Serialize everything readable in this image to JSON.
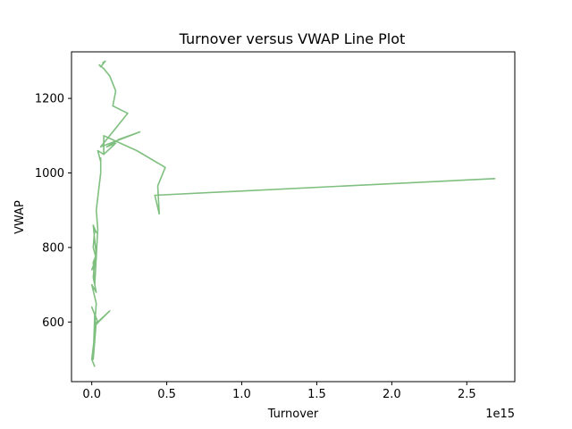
{
  "chart_data": {
    "type": "line",
    "title": "Turnover versus VWAP Line Plot",
    "xlabel": "Turnover",
    "ylabel": "VWAP",
    "x_offset_label": "1e15",
    "x_tick_labels": [
      "0.0",
      "0.5",
      "1.0",
      "1.5",
      "2.0",
      "2.5"
    ],
    "x_ticks": [
      0,
      0.5,
      1.0,
      1.5,
      2.0,
      2.5
    ],
    "y_ticks": [
      600,
      800,
      1000,
      1200
    ],
    "xlim": [
      -0.135,
      2.82
    ],
    "ylim": [
      440,
      1325
    ],
    "grid": false,
    "line_color": "#7fbf7f",
    "series": [
      {
        "x": [
          0.02,
          0.0,
          0.03,
          0.01,
          0.02,
          0.0,
          0.04,
          0.12,
          0.02,
          0.03,
          0.0,
          0.03,
          0.01,
          0.02,
          0.0,
          0.03,
          0.01,
          0.02,
          0.03,
          0.01,
          0.02,
          0.03,
          0.01,
          0.02,
          0.04,
          0.03,
          0.06,
          0.06,
          0.06,
          0.04,
          0.08,
          0.08,
          0.3,
          0.49,
          0.44,
          0.45,
          0.42,
          2.69
        ],
        "y": [
          480,
          500,
          600,
          500,
          620,
          640,
          600,
          630,
          590,
          650,
          700,
          680,
          720,
          760,
          740,
          770,
          800,
          850,
          840,
          860,
          820,
          780,
          760,
          700,
          850,
          900,
          1000,
          1040,
          1030,
          1060,
          1050,
          1100,
          1060,
          1015,
          965,
          890,
          940,
          985
        ]
      },
      {
        "x": [
          0.08,
          0.16,
          0.1,
          0.18,
          0.32,
          0.06,
          0.24,
          0.14,
          0.16,
          0.12,
          0.08,
          0.05,
          0.06,
          0.09,
          0.07
        ],
        "y": [
          1050,
          1080,
          1070,
          1090,
          1110,
          1070,
          1160,
          1180,
          1220,
          1260,
          1280,
          1290,
          1285,
          1300,
          1295
        ]
      }
    ]
  }
}
